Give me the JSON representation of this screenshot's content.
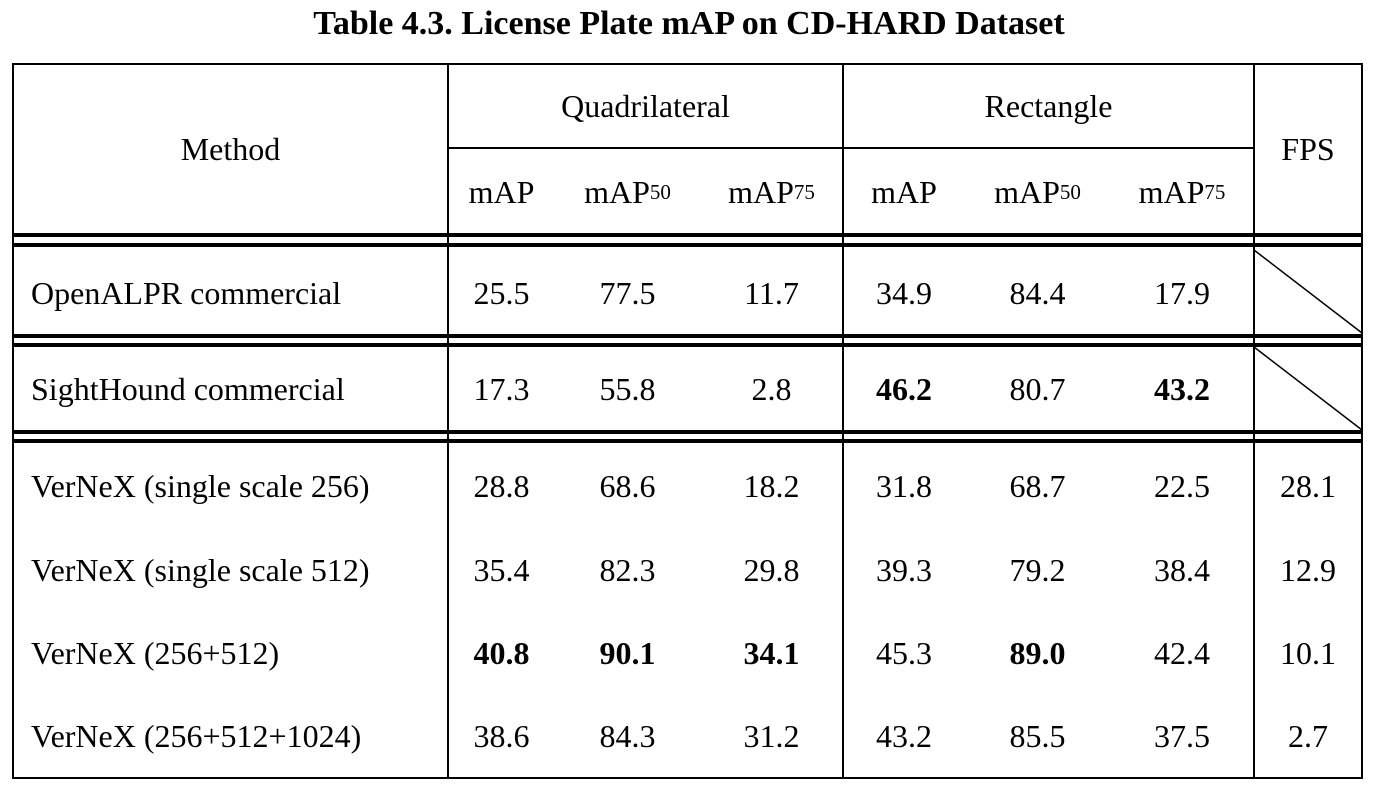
{
  "caption": "Table 4.3. License Plate mAP on CD-HARD Dataset",
  "header": {
    "method": "Method",
    "group_quadrilateral": "Quadrilateral",
    "group_rectangle": "Rectangle",
    "fps": "FPS",
    "sub_cols": [
      {
        "base": "mAP",
        "sub": ""
      },
      {
        "base": "mAP",
        "sub": "50"
      },
      {
        "base": "mAP",
        "sub": "75"
      },
      {
        "base": "mAP",
        "sub": ""
      },
      {
        "base": "mAP",
        "sub": "50"
      },
      {
        "base": "mAP",
        "sub": "75"
      }
    ]
  },
  "rows": [
    {
      "method": "OpenALPR commercial",
      "values": [
        "25.5",
        "77.5",
        "11.7",
        "34.9",
        "84.4",
        "17.9"
      ],
      "fps": "",
      "bold": [
        false,
        false,
        false,
        false,
        false,
        false
      ]
    },
    {
      "method": "SightHound commercial",
      "values": [
        "17.3",
        "55.8",
        "2.8",
        "46.2",
        "80.7",
        "43.2"
      ],
      "fps": "",
      "bold": [
        false,
        false,
        false,
        true,
        false,
        true
      ]
    },
    {
      "method": "VerNeX (single scale 256)",
      "values": [
        "28.8",
        "68.6",
        "18.2",
        "31.8",
        "68.7",
        "22.5"
      ],
      "fps": "28.1",
      "bold": [
        false,
        false,
        false,
        false,
        false,
        false
      ]
    },
    {
      "method": "VerNeX (single scale 512)",
      "values": [
        "35.4",
        "82.3",
        "29.8",
        "39.3",
        "79.2",
        "38.4"
      ],
      "fps": "12.9",
      "bold": [
        false,
        false,
        false,
        false,
        false,
        false
      ]
    },
    {
      "method": "VerNeX (256+512)",
      "values": [
        "40.8",
        "90.1",
        "34.1",
        "45.3",
        "89.0",
        "42.4"
      ],
      "fps": "10.1",
      "bold": [
        true,
        true,
        true,
        false,
        true,
        false
      ]
    },
    {
      "method": "VerNeX (256+512+1024)",
      "values": [
        "38.6",
        "84.3",
        "31.2",
        "43.2",
        "85.5",
        "37.5"
      ],
      "fps": "2.7",
      "bold": [
        false,
        false,
        false,
        false,
        false,
        false
      ]
    }
  ]
}
